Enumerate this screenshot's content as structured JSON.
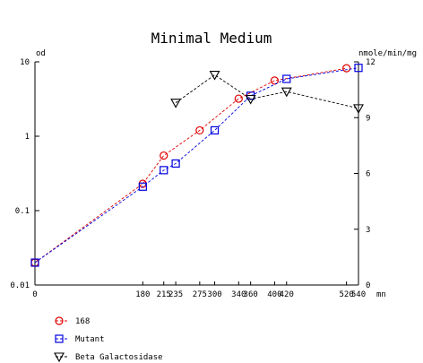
{
  "chart_data": {
    "type": "line",
    "title": "Minimal Medium",
    "left_axis": {
      "label": "od",
      "scale": "log",
      "range": [
        0.01,
        10
      ],
      "ticks": [
        {
          "value": 0.01,
          "label": "0.01"
        },
        {
          "value": 0.1,
          "label": "0.1"
        },
        {
          "value": 1,
          "label": "1"
        },
        {
          "value": 10,
          "label": "10"
        }
      ]
    },
    "right_axis": {
      "label": "nmole/min/mg",
      "scale": "linear",
      "range": [
        0,
        12
      ],
      "ticks": [
        {
          "value": 0,
          "label": "0"
        },
        {
          "value": 3,
          "label": "3"
        },
        {
          "value": 6,
          "label": "6"
        },
        {
          "value": 9,
          "label": "9"
        },
        {
          "value": 12,
          "label": "12"
        }
      ]
    },
    "x_axis": {
      "unit_label": "mn",
      "range": [
        0,
        540
      ],
      "ticks": [
        {
          "value": 0,
          "label": "0"
        },
        {
          "value": 180,
          "label": "180"
        },
        {
          "value": 215,
          "label": "215"
        },
        {
          "value": 235,
          "label": "235"
        },
        {
          "value": 275,
          "label": "275"
        },
        {
          "value": 300,
          "label": "300"
        },
        {
          "value": 340,
          "label": "340"
        },
        {
          "value": 360,
          "label": "360"
        },
        {
          "value": 400,
          "label": "400"
        },
        {
          "value": 420,
          "label": "420"
        },
        {
          "value": 520,
          "label": "520"
        },
        {
          "value": 540,
          "label": "540"
        }
      ]
    },
    "grid": false,
    "legend_position": "bottom-left",
    "series": [
      {
        "name": "168",
        "axis": "left",
        "marker": "circle",
        "color": "#e00000",
        "points": [
          [
            0,
            0.02
          ],
          [
            180,
            0.23
          ],
          [
            215,
            0.55
          ],
          [
            275,
            1.2
          ],
          [
            340,
            3.2
          ],
          [
            400,
            5.6
          ],
          [
            520,
            8.2
          ]
        ]
      },
      {
        "name": "Mutant",
        "axis": "left",
        "marker": "square",
        "color": "#0000e0",
        "points": [
          [
            0,
            0.02
          ],
          [
            180,
            0.21
          ],
          [
            215,
            0.35
          ],
          [
            235,
            0.43
          ],
          [
            300,
            1.2
          ],
          [
            360,
            3.5
          ],
          [
            420,
            5.9
          ],
          [
            540,
            8.3
          ]
        ]
      },
      {
        "name": "Beta Galactosidase",
        "axis": "right",
        "marker": "triangle-down",
        "color": "#000000",
        "points": [
          [
            235,
            9.8
          ],
          [
            300,
            11.3
          ],
          [
            360,
            10.0
          ],
          [
            420,
            10.4
          ],
          [
            540,
            9.5
          ]
        ]
      }
    ]
  }
}
